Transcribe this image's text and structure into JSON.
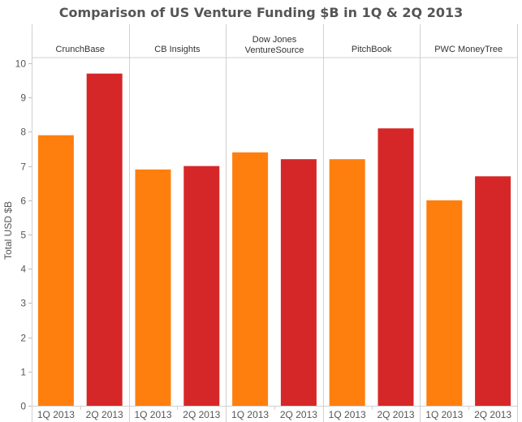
{
  "chart_data": {
    "type": "bar",
    "title": "Comparison of US Venture Funding $B in 1Q & 2Q 2013",
    "xlabel": "",
    "ylabel": "Total USD $B",
    "ylim": [
      0,
      10
    ],
    "yticks": [
      "0",
      "1",
      "2",
      "3",
      "4",
      "5",
      "6",
      "7",
      "8",
      "9",
      "10"
    ],
    "grid": false,
    "legend": "none",
    "categories": [
      "1Q 2013",
      "2Q 2013"
    ],
    "colors": {
      "1Q 2013": "#FF7F0E",
      "2Q 2013": "#D62728"
    },
    "panels": [
      {
        "name": "CrunchBase",
        "values": [
          7.9,
          9.7
        ]
      },
      {
        "name": "CB Insights",
        "values": [
          6.9,
          7.0
        ]
      },
      {
        "name": "Dow Jones VentureSource",
        "name_lines": [
          "Dow Jones",
          "VentureSource"
        ],
        "values": [
          7.4,
          7.2
        ]
      },
      {
        "name": "PitchBook",
        "values": [
          7.2,
          8.1
        ]
      },
      {
        "name": "PWC MoneyTree",
        "values": [
          6.0,
          6.7
        ]
      }
    ]
  }
}
